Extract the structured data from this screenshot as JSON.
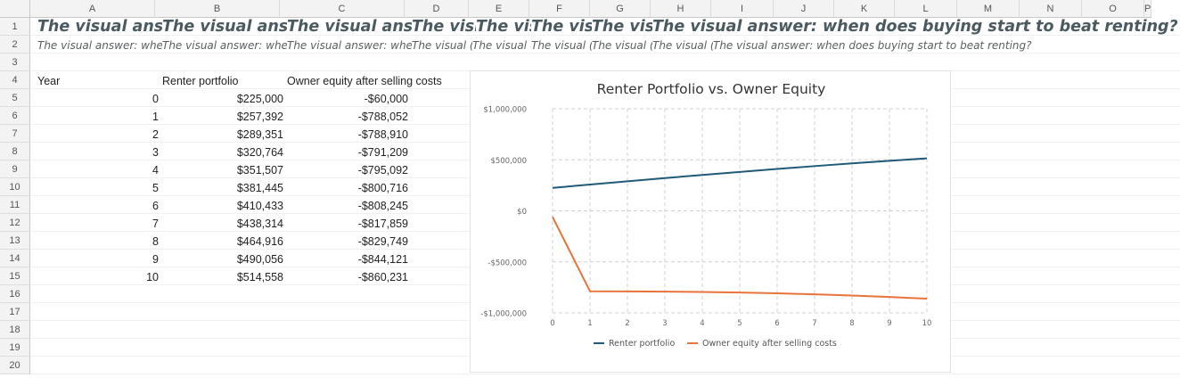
{
  "columns": [
    "A",
    "B",
    "C",
    "D",
    "E",
    "F",
    "G",
    "H",
    "I",
    "J",
    "K",
    "L",
    "M",
    "N",
    "O",
    "P"
  ],
  "rows": [
    "1",
    "2",
    "3",
    "4",
    "5",
    "6",
    "7",
    "8",
    "9",
    "10",
    "11",
    "12",
    "13",
    "14",
    "15",
    "16",
    "17",
    "18",
    "19",
    "20"
  ],
  "title_fragments": [
    "The visual answ",
    "The visual answ",
    "The visual answ",
    "The visi",
    "The visi",
    "The visi",
    "The visi"
  ],
  "title_full": "The visual answer: when does buying start to beat renting?",
  "subtitle_fragments": [
    "The visual answer: whe",
    "The visual answer: whe",
    "The visual answer: whe",
    "The visual (",
    "The visual (",
    "The visual (",
    "The visual (",
    "The visual ("
  ],
  "subtitle_full": "The visual answer: when does buying start to beat renting?",
  "headers": {
    "year": "Year",
    "renter": "Renter portfolio",
    "owner": "Owner equity after selling costs"
  },
  "table": [
    {
      "year": "0",
      "renter": "$225,000",
      "owner": "-$60,000"
    },
    {
      "year": "1",
      "renter": "$257,392",
      "owner": "-$788,052"
    },
    {
      "year": "2",
      "renter": "$289,351",
      "owner": "-$788,910"
    },
    {
      "year": "3",
      "renter": "$320,764",
      "owner": "-$791,209"
    },
    {
      "year": "4",
      "renter": "$351,507",
      "owner": "-$795,092"
    },
    {
      "year": "5",
      "renter": "$381,445",
      "owner": "-$800,716"
    },
    {
      "year": "6",
      "renter": "$410,433",
      "owner": "-$808,245"
    },
    {
      "year": "7",
      "renter": "$438,314",
      "owner": "-$817,859"
    },
    {
      "year": "8",
      "renter": "$464,916",
      "owner": "-$829,749"
    },
    {
      "year": "9",
      "renter": "$490,056",
      "owner": "-$844,121"
    },
    {
      "year": "10",
      "renter": "$514,558",
      "owner": "-$860,231"
    }
  ],
  "chart_data": {
    "type": "line",
    "title": "Renter Portfolio vs. Owner Equity",
    "xlabel": "",
    "ylabel": "",
    "x": [
      0,
      1,
      2,
      3,
      4,
      5,
      6,
      7,
      8,
      9,
      10
    ],
    "x_ticks": [
      "0",
      "1",
      "2",
      "3",
      "4",
      "5",
      "6",
      "7",
      "8",
      "9",
      "10"
    ],
    "ylim": [
      -1000000,
      1000000
    ],
    "y_ticks": [
      1000000,
      500000,
      0,
      -500000,
      -1000000
    ],
    "y_tick_labels": [
      "$1,000,000",
      "$500,000",
      "$0",
      "-$500,000",
      "-$1,000,000"
    ],
    "grid": true,
    "legend": "bottom",
    "series": [
      {
        "name": "Renter portfolio",
        "color": "#1f5b78",
        "values": [
          225000,
          257392,
          289351,
          320764,
          351507,
          381445,
          410433,
          438314,
          464916,
          490056,
          514558
        ]
      },
      {
        "name": "Owner equity after selling costs",
        "color": "#e8743b",
        "values": [
          -60000,
          -788052,
          -788910,
          -791209,
          -795092,
          -800716,
          -808245,
          -817859,
          -829749,
          -844121,
          -860231
        ]
      }
    ]
  }
}
